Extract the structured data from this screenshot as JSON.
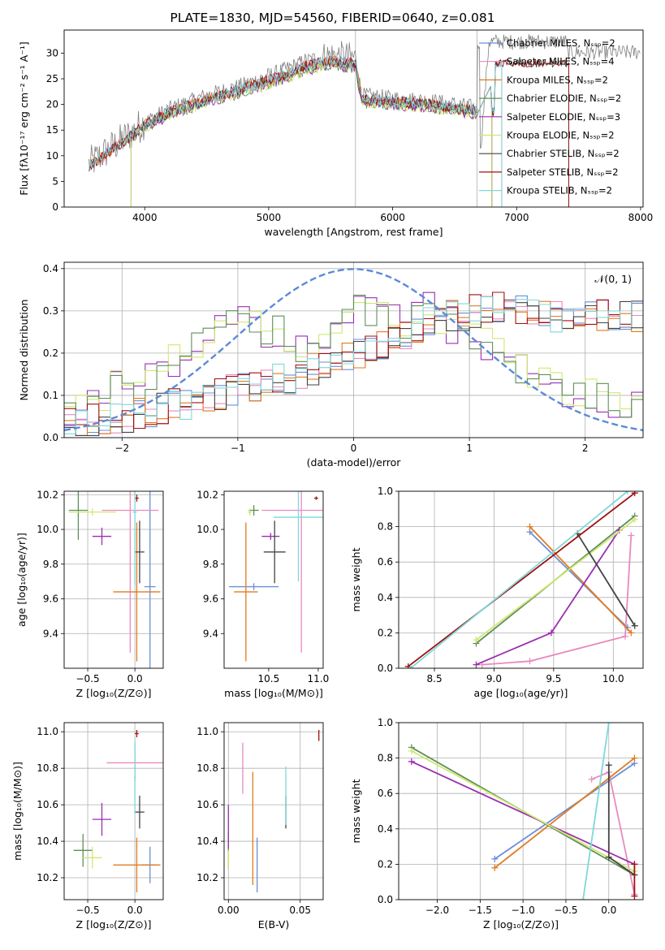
{
  "title": "PLATE=1830, MJD=54560, FIBERID=0640, z=0.081",
  "colors": {
    "Chabrier MILES": "#6a8fd8",
    "Salpeter MILES": "#e88ac0",
    "Kroupa MILES": "#e07b20",
    "Chabrier ELODIE": "#5f8f5a",
    "Salpeter ELODIE": "#9a2fb0",
    "Kroupa ELODIE": "#d0e870",
    "Chabrier STELIB": "#444444",
    "Salpeter STELIB": "#a01010",
    "Kroupa STELIB": "#7fd8d8",
    "data": "#808080",
    "gaussian": "#5b8ad8"
  },
  "panels": {
    "spectrum": {
      "xlabel": "wavelength [Angstrom, rest frame]",
      "ylabel": "Flux [fλ10⁻¹⁷ erg cm⁻² s⁻¹ A⁻¹]",
      "xticks": [
        "4000",
        "5000",
        "6000",
        "7000",
        "8000"
      ],
      "yticks": [
        "0",
        "5",
        "10",
        "15",
        "20",
        "25",
        "30"
      ],
      "legend": [
        "Chabrier MILES, Nₛₛₚ=2",
        "Salpeter MILES, Nₛₛₚ=4",
        "Kroupa MILES, Nₛₛₚ=2",
        "Chabrier ELODIE, Nₛₛₚ=2",
        "Salpeter ELODIE, Nₛₛₚ=3",
        "Kroupa ELODIE, Nₛₛₚ=2",
        "Chabrier STELIB, Nₛₛₚ=2",
        "Salpeter STELIB, Nₛₛₚ=2",
        "Kroupa STELIB, Nₛₛₚ=2"
      ]
    },
    "residuals": {
      "xlabel": "(data-model)/error",
      "ylabel": "Normed distribution",
      "xticks": [
        "−2",
        "−1",
        "0",
        "1",
        "2"
      ],
      "yticks": [
        "0.0",
        "0.1",
        "0.2",
        "0.3",
        "0.4"
      ],
      "gauss_label": "𝒩(0, 1)"
    },
    "z_age": {
      "xlabel": "Z [log₁₀(Z/Z⊙)]",
      "ylabel": "age  [log₁₀(age/yr)]",
      "xticks": [
        "−0.5",
        "0.0"
      ],
      "yticks": [
        "9.4",
        "9.6",
        "9.8",
        "10.0",
        "10.2"
      ]
    },
    "mass_age": {
      "xlabel": "mass [log₁₀(M/M⊙)]",
      "xticks": [
        "10.5",
        "11.0"
      ],
      "yticks": [
        "9.4",
        "9.6",
        "9.8",
        "10.0",
        "10.2"
      ]
    },
    "age_weight": {
      "xlabel": "age  [log₁₀(age/yr)]",
      "ylabel": "mass weight",
      "xticks": [
        "8.5",
        "9.0",
        "9.5",
        "10.0"
      ],
      "yticks": [
        "0.0",
        "0.2",
        "0.4",
        "0.6",
        "0.8",
        "1.0"
      ]
    },
    "z_mass": {
      "xlabel": "Z [log₁₀(Z/Z⊙)]",
      "ylabel": "mass [log₁₀(M/M⊙)]",
      "xticks": [
        "−0.5",
        "0.0"
      ],
      "yticks": [
        "10.2",
        "10.4",
        "10.6",
        "10.8",
        "11.0"
      ]
    },
    "ebv_mass": {
      "xlabel": "E(B-V)",
      "xticks": [
        "0.00",
        "0.05"
      ],
      "yticks": [
        "10.2",
        "10.4",
        "10.6",
        "10.8",
        "11.0"
      ]
    },
    "z_weight": {
      "xlabel": "Z [log₁₀(Z/Z⊙)]",
      "ylabel": "mass weight",
      "xticks": [
        "−2.0",
        "−1.5",
        "−1.0",
        "−0.5",
        "0.0"
      ],
      "yticks": [
        "0.0",
        "0.2",
        "0.4",
        "0.6",
        "0.8",
        "1.0"
      ]
    }
  },
  "chart_data": [
    {
      "type": "line",
      "panel": "spectrum",
      "xlim": [
        3350,
        8020
      ],
      "ylim": [
        0,
        34.5
      ],
      "grid": "vertical at 5700 and 6680",
      "legend_position": "upper-right",
      "continuum_knots": [
        [
          3550,
          8
        ],
        [
          3900,
          14
        ],
        [
          4000,
          16
        ],
        [
          4200,
          18.5
        ],
        [
          4500,
          21
        ],
        [
          4800,
          23
        ],
        [
          5150,
          26
        ],
        [
          5300,
          27.5
        ],
        [
          5500,
          28.5
        ],
        [
          5700,
          28
        ],
        [
          5750,
          21
        ],
        [
          6000,
          20.5
        ],
        [
          6300,
          20
        ],
        [
          6600,
          19
        ],
        [
          6700,
          18.5
        ]
      ],
      "cutoffs": {
        "Chabrier MILES": 6880,
        "Salpeter MILES": 6880,
        "Kroupa MILES": 6800,
        "Chabrier ELODIE": 6800,
        "Salpeter ELODIE": 6800,
        "Kroupa ELODIE": 6800,
        "Chabrier STELIB": 7420,
        "Salpeter STELIB": 7420,
        "Kroupa STELIB": 6880
      }
    },
    {
      "type": "bar",
      "panel": "residuals",
      "xlim": [
        -2.5,
        2.5
      ],
      "ylim": [
        0,
        0.415
      ],
      "bin_width": 0.1,
      "gaussian": {
        "mean": 0,
        "sigma": 1
      },
      "series_groups": [
        {
          "members": [
            "Salpeter ELODIE",
            "Kroupa ELODIE",
            "Chabrier ELODIE"
          ],
          "base": [
            0.07,
            0.08,
            0.1,
            0.1,
            0.12,
            0.14,
            0.12,
            0.15,
            0.14,
            0.18,
            0.2,
            0.22,
            0.24,
            0.26,
            0.28,
            0.3,
            0.27,
            0.22,
            0.25,
            0.23,
            0.22,
            0.24,
            0.25,
            0.27,
            0.29,
            0.31,
            0.3,
            0.32,
            0.29,
            0.27,
            0.3,
            0.33,
            0.28,
            0.26,
            0.25,
            0.24,
            0.22,
            0.2,
            0.18,
            0.16,
            0.15,
            0.14,
            0.12,
            0.11,
            0.1,
            0.1,
            0.09,
            0.08,
            0.08,
            0.07
          ]
        },
        {
          "members": [
            "Chabrier MILES",
            "Salpeter MILES",
            "Kroupa MILES",
            "Chabrier STELIB",
            "Salpeter STELIB",
            "Kroupa STELIB"
          ],
          "base": [
            0.03,
            0.03,
            0.04,
            0.04,
            0.05,
            0.05,
            0.06,
            0.06,
            0.07,
            0.08,
            0.08,
            0.09,
            0.1,
            0.1,
            0.11,
            0.12,
            0.12,
            0.13,
            0.14,
            0.14,
            0.15,
            0.16,
            0.17,
            0.18,
            0.19,
            0.2,
            0.21,
            0.22,
            0.23,
            0.24,
            0.26,
            0.27,
            0.28,
            0.29,
            0.29,
            0.3,
            0.3,
            0.31,
            0.3,
            0.3,
            0.29,
            0.29,
            0.29,
            0.29,
            0.29,
            0.29,
            0.29,
            0.29,
            0.29,
            0.29
          ]
        }
      ]
    },
    {
      "type": "scatter",
      "panel": "z_age",
      "xlim": [
        -0.75,
        0.3
      ],
      "ylim": [
        9.2,
        10.22
      ],
      "points": [
        {
          "s": "Chabrier MILES",
          "x": 0.16,
          "y": 9.67,
          "xerr": [
            0.06,
            0.06
          ],
          "yerr": [
            0.55,
            0.55
          ]
        },
        {
          "s": "Salpeter MILES",
          "x": -0.05,
          "y": 10.11,
          "xerr": [
            0.3,
            0.3
          ],
          "yerr": [
            0.82,
            0.82
          ]
        },
        {
          "s": "Kroupa MILES",
          "x": 0.02,
          "y": 9.64,
          "xerr": [
            0.25,
            0.25
          ],
          "yerr": [
            0.4,
            0.4
          ]
        },
        {
          "s": "Chabrier ELODIE",
          "x": -0.6,
          "y": 10.11,
          "xerr": [
            0.1,
            0.1
          ],
          "yerr": [
            0.17,
            0.17
          ]
        },
        {
          "s": "Salpeter ELODIE",
          "x": -0.35,
          "y": 9.96,
          "xerr": [
            0.1,
            0.1
          ],
          "yerr": [
            0.05,
            0.05
          ]
        },
        {
          "s": "Kroupa ELODIE",
          "x": -0.45,
          "y": 10.1,
          "xerr": [
            0.25,
            0.25
          ],
          "yerr": [
            0.02,
            0.02
          ]
        },
        {
          "s": "Chabrier STELIB",
          "x": 0.05,
          "y": 9.87,
          "xerr": [
            0.05,
            0.05
          ],
          "yerr": [
            0.18,
            0.18
          ]
        },
        {
          "s": "Salpeter STELIB",
          "x": 0.02,
          "y": 10.18,
          "xerr": [
            0.02,
            0.02
          ],
          "yerr": [
            0.02,
            0.02
          ]
        },
        {
          "s": "Kroupa STELIB",
          "x": 0.0,
          "y": 10.1,
          "xerr": [
            0.02,
            0.02
          ],
          "yerr": [
            0.42,
            0.42
          ]
        }
      ]
    },
    {
      "type": "scatter",
      "panel": "mass_age",
      "xlim": [
        10.05,
        11.05
      ],
      "ylim": [
        9.2,
        10.22
      ],
      "points": [
        {
          "s": "Chabrier MILES",
          "x": 10.35,
          "y": 9.67,
          "xerr": [
            0.25,
            0.25
          ],
          "yerr": [
            0.02,
            0.02
          ]
        },
        {
          "s": "Salpeter MILES",
          "x": 10.83,
          "y": 10.11,
          "xerr": [
            0.4,
            0.4
          ],
          "yerr": [
            0.82,
            0.82
          ]
        },
        {
          "s": "Kroupa MILES",
          "x": 10.27,
          "y": 9.64,
          "xerr": [
            0.12,
            0.12
          ],
          "yerr": [
            0.4,
            0.4
          ]
        },
        {
          "s": "Chabrier ELODIE",
          "x": 10.35,
          "y": 10.11,
          "xerr": [
            0.05,
            0.05
          ],
          "yerr": [
            0.03,
            0.03
          ]
        },
        {
          "s": "Salpeter ELODIE",
          "x": 10.52,
          "y": 9.96,
          "xerr": [
            0.09,
            0.09
          ],
          "yerr": [
            0.02,
            0.02
          ]
        },
        {
          "s": "Kroupa ELODIE",
          "x": 10.31,
          "y": 10.1,
          "xerr": [
            0.02,
            0.02
          ],
          "yerr": [
            0.02,
            0.02
          ]
        },
        {
          "s": "Chabrier STELIB",
          "x": 10.56,
          "y": 9.87,
          "xerr": [
            0.11,
            0.11
          ],
          "yerr": [
            0.18,
            0.18
          ]
        },
        {
          "s": "Salpeter STELIB",
          "x": 10.98,
          "y": 10.18,
          "xerr": [
            0.02,
            0.02
          ],
          "yerr": [
            0.01,
            0.01
          ]
        },
        {
          "s": "Kroupa STELIB",
          "x": 10.8,
          "y": 10.07,
          "xerr": [
            0.25,
            0.25
          ],
          "yerr": [
            0.37,
            0.37
          ]
        }
      ]
    },
    {
      "type": "line",
      "panel": "age_weight",
      "xlim": [
        8.2,
        10.25
      ],
      "ylim": [
        0,
        1.0
      ],
      "series": [
        {
          "name": "Chabrier MILES",
          "x": [
            9.3,
            10.12
          ],
          "y": [
            0.77,
            0.23
          ]
        },
        {
          "name": "Salpeter MILES",
          "x": [
            8.9,
            9.3,
            10.1,
            10.15
          ],
          "y": [
            0.02,
            0.04,
            0.18,
            0.75
          ]
        },
        {
          "name": "Kroupa MILES",
          "x": [
            9.3,
            10.15
          ],
          "y": [
            0.8,
            0.2
          ]
        },
        {
          "name": "Chabrier ELODIE",
          "x": [
            8.85,
            10.18
          ],
          "y": [
            0.14,
            0.86
          ]
        },
        {
          "name": "Salpeter ELODIE",
          "x": [
            8.85,
            9.48,
            10.05
          ],
          "y": [
            0.02,
            0.2,
            0.78
          ]
        },
        {
          "name": "Kroupa ELODIE",
          "x": [
            8.85,
            10.18
          ],
          "y": [
            0.16,
            0.84
          ]
        },
        {
          "name": "Chabrier STELIB",
          "x": [
            9.7,
            10.18
          ],
          "y": [
            0.76,
            0.24
          ]
        },
        {
          "name": "Salpeter STELIB",
          "x": [
            8.28,
            10.18
          ],
          "y": [
            0.01,
            0.99
          ]
        },
        {
          "name": "Kroupa STELIB",
          "x": [
            8.3,
            10.12
          ],
          "y": [
            0.0,
            1.0
          ]
        }
      ]
    },
    {
      "type": "scatter",
      "panel": "z_mass",
      "xlim": [
        -0.75,
        0.3
      ],
      "ylim": [
        10.08,
        11.05
      ],
      "points": [
        {
          "s": "Chabrier MILES",
          "x": 0.16,
          "y": 10.27,
          "xerr": [
            0.08,
            0.08
          ],
          "yerr": [
            0.1,
            0.1
          ]
        },
        {
          "s": "Salpeter MILES",
          "x": 0.0,
          "y": 10.83,
          "xerr": [
            0.3,
            0.3
          ],
          "yerr": [
            0.1,
            0.1
          ]
        },
        {
          "s": "Kroupa MILES",
          "x": 0.02,
          "y": 10.27,
          "xerr": [
            0.25,
            0.25
          ],
          "yerr": [
            0.15,
            0.15
          ]
        },
        {
          "s": "Chabrier ELODIE",
          "x": -0.55,
          "y": 10.35,
          "xerr": [
            0.1,
            0.1
          ],
          "yerr": [
            0.09,
            0.09
          ]
        },
        {
          "s": "Salpeter ELODIE",
          "x": -0.35,
          "y": 10.52,
          "xerr": [
            0.1,
            0.1
          ],
          "yerr": [
            0.09,
            0.09
          ]
        },
        {
          "s": "Kroupa ELODIE",
          "x": -0.45,
          "y": 10.31,
          "xerr": [
            0.1,
            0.1
          ],
          "yerr": [
            0.06,
            0.06
          ]
        },
        {
          "s": "Chabrier STELIB",
          "x": 0.05,
          "y": 10.56,
          "xerr": [
            0.05,
            0.05
          ],
          "yerr": [
            0.09,
            0.09
          ]
        },
        {
          "s": "Salpeter STELIB",
          "x": 0.02,
          "y": 10.99,
          "xerr": [
            0.02,
            0.02
          ],
          "yerr": [
            0.02,
            0.02
          ]
        },
        {
          "s": "Kroupa STELIB",
          "x": 0.0,
          "y": 10.75,
          "xerr": [
            0.01,
            0.01
          ],
          "yerr": [
            0.2,
            0.2
          ]
        }
      ]
    },
    {
      "type": "scatter",
      "panel": "ebv_mass",
      "xlim": [
        -0.003,
        0.066
      ],
      "ylim": [
        10.08,
        11.05
      ],
      "points": [
        {
          "s": "Chabrier MILES",
          "x": 0.02,
          "y": 10.27,
          "xerr": [
            0,
            0
          ],
          "yerr": [
            0.15,
            0.15
          ]
        },
        {
          "s": "Salpeter MILES",
          "x": 0.01,
          "y": 10.8,
          "xerr": [
            0,
            0
          ],
          "yerr": [
            0.14,
            0.14
          ]
        },
        {
          "s": "Kroupa MILES",
          "x": 0.017,
          "y": 10.47,
          "xerr": [
            0,
            0
          ],
          "yerr": [
            0.31,
            0.31
          ]
        },
        {
          "s": "Chabrier ELODIE",
          "x": 0.0,
          "y": 10.35,
          "xerr": [
            0,
            0
          ],
          "yerr": [
            0.1,
            0.1
          ]
        },
        {
          "s": "Salpeter ELODIE",
          "x": 0.0,
          "y": 10.48,
          "xerr": [
            0,
            0
          ],
          "yerr": [
            0.12,
            0.12
          ]
        },
        {
          "s": "Kroupa ELODIE",
          "x": 0.0,
          "y": 10.3,
          "xerr": [
            0,
            0
          ],
          "yerr": [
            0.05,
            0.05
          ]
        },
        {
          "s": "Chabrier STELIB",
          "x": 0.04,
          "y": 10.56,
          "xerr": [
            0,
            0
          ],
          "yerr": [
            0.09,
            0.09
          ]
        },
        {
          "s": "Salpeter STELIB",
          "x": 0.063,
          "y": 10.98,
          "xerr": [
            0,
            0
          ],
          "yerr": [
            0.03,
            0.03
          ]
        },
        {
          "s": "Kroupa STELIB",
          "x": 0.04,
          "y": 10.65,
          "xerr": [
            0,
            0
          ],
          "yerr": [
            0.16,
            0.16
          ]
        }
      ]
    },
    {
      "type": "line",
      "panel": "z_weight",
      "xlim": [
        -2.45,
        0.4
      ],
      "ylim": [
        0,
        1.0
      ],
      "series": [
        {
          "name": "Chabrier MILES",
          "x": [
            -1.33,
            0.3
          ],
          "y": [
            0.23,
            0.77
          ]
        },
        {
          "name": "Salpeter MILES",
          "x": [
            -0.2,
            0.0,
            0.3
          ],
          "y": [
            0.68,
            0.72,
            0.03
          ]
        },
        {
          "name": "Kroupa MILES",
          "x": [
            -1.33,
            0.3
          ],
          "y": [
            0.18,
            0.8
          ]
        },
        {
          "name": "Chabrier ELODIE",
          "x": [
            -2.3,
            0.3
          ],
          "y": [
            0.86,
            0.14
          ]
        },
        {
          "name": "Salpeter ELODIE",
          "x": [
            -2.3,
            0.3
          ],
          "y": [
            0.78,
            0.2
          ]
        },
        {
          "name": "Kroupa ELODIE",
          "x": [
            -2.3,
            0.3
          ],
          "y": [
            0.84,
            0.16
          ]
        },
        {
          "name": "Chabrier STELIB",
          "x": [
            0.0,
            0.0,
            0.3
          ],
          "y": [
            0.76,
            0.24,
            0.14
          ]
        },
        {
          "name": "Salpeter STELIB",
          "x": [
            0.3,
            0.3
          ],
          "y": [
            0.02,
            0.2
          ]
        },
        {
          "name": "Kroupa STELIB",
          "x": [
            -0.3,
            0.0
          ],
          "y": [
            0.0,
            1.0
          ]
        }
      ]
    }
  ]
}
